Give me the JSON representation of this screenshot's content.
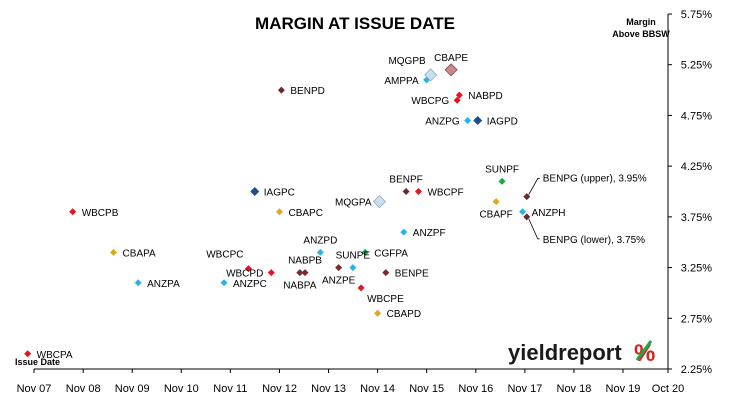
{
  "chart_data": {
    "type": "scatter",
    "title": "MARGIN AT ISSUE DATE",
    "ylabel_lines": [
      "Margin",
      "Above BBSW"
    ],
    "xlabel": "Issue Date",
    "logo": {
      "text": "yieldreport",
      "symbol": "%"
    },
    "xlim": [
      "2007-11-01",
      "2020-10-01"
    ],
    "ylim": [
      2.25,
      5.75
    ],
    "x_ticks": [
      {
        "label": "Nov 07",
        "date": "2007-11-01"
      },
      {
        "label": "Nov 08",
        "date": "2008-11-01"
      },
      {
        "label": "Nov 09",
        "date": "2009-11-01"
      },
      {
        "label": "Nov 10",
        "date": "2010-11-01"
      },
      {
        "label": "Nov 11",
        "date": "2011-11-01"
      },
      {
        "label": "Nov 12",
        "date": "2012-11-01"
      },
      {
        "label": "Nov 13",
        "date": "2013-11-01"
      },
      {
        "label": "Nov 14",
        "date": "2014-11-01"
      },
      {
        "label": "Nov 15",
        "date": "2015-11-01"
      },
      {
        "label": "Nov 16",
        "date": "2016-11-01"
      },
      {
        "label": "Nov 17",
        "date": "2017-11-01"
      },
      {
        "label": "Nov 18",
        "date": "2018-11-01"
      },
      {
        "label": "Nov 19",
        "date": "2019-11-01"
      },
      {
        "label": "Oct 20",
        "date": "2020-10-01"
      }
    ],
    "y_ticks": [
      {
        "label": "2.25%",
        "value": 2.25
      },
      {
        "label": "2.75%",
        "value": 2.75
      },
      {
        "label": "3.25%",
        "value": 3.25
      },
      {
        "label": "3.75%",
        "value": 3.75
      },
      {
        "label": "4.25%",
        "value": 4.25
      },
      {
        "label": "4.75%",
        "value": 4.75
      },
      {
        "label": "5.25%",
        "value": 5.25
      },
      {
        "label": "5.75%",
        "value": 5.75
      }
    ],
    "grid": false,
    "points": [
      {
        "label": "WBCPA",
        "date": "2007-09-15",
        "margin": 2.4,
        "color": "#e8141b",
        "label_pos": "right"
      },
      {
        "label": "WBCPB",
        "date": "2008-08-15",
        "margin": 3.8,
        "color": "#e8141b",
        "label_pos": "right"
      },
      {
        "label": "CBAPA",
        "date": "2009-06-15",
        "margin": 3.4,
        "color": "#e3a51b",
        "label_pos": "right"
      },
      {
        "label": "ANZPA",
        "date": "2009-12-15",
        "margin": 3.1,
        "color": "#28b4e6",
        "label_pos": "right"
      },
      {
        "label": "ANZPC",
        "date": "2011-09-15",
        "margin": 3.1,
        "color": "#28b4e6",
        "label_pos": "right"
      },
      {
        "label": "IAGPC",
        "date": "2012-05-01",
        "margin": 4.0,
        "color": "#1f4e8c",
        "label_pos": "right"
      },
      {
        "label": "WBCPC",
        "date": "2012-03-15",
        "margin": 3.24,
        "color": "#e8141b",
        "label_pos": "above-left"
      },
      {
        "label": "WBCPD",
        "date": "2012-09-01",
        "margin": 3.2,
        "color": "#e8141b",
        "label_pos": "left"
      },
      {
        "label": "CBAPC",
        "date": "2012-11-01",
        "margin": 3.8,
        "color": "#e3a51b",
        "label_pos": "right"
      },
      {
        "label": "BENPD",
        "date": "2012-11-15",
        "margin": 5.0,
        "color": "#6b2a2a",
        "label_pos": "right"
      },
      {
        "label": "NABPA",
        "date": "2013-04-01",
        "margin": 3.2,
        "color": "#7a2a2a",
        "label_pos": "below"
      },
      {
        "label": "NABPB",
        "date": "2013-05-10",
        "margin": 3.2,
        "color": "#7a2a2a",
        "label_pos": "above"
      },
      {
        "label": "ANZPD",
        "date": "2013-09-01",
        "margin": 3.4,
        "color": "#28b4e6",
        "label_pos": "above"
      },
      {
        "label": "ANZPE",
        "date": "2014-01-15",
        "margin": 3.25,
        "color": "#7a2a2a",
        "label_pos": "below"
      },
      {
        "label": "SUNPE",
        "date": "2014-05-01",
        "margin": 3.25,
        "color": "#28b4e6",
        "label_pos": "above"
      },
      {
        "label": "CGFPA",
        "date": "2014-08-01",
        "margin": 3.4,
        "color": "#1fa64a",
        "label_pos": "right"
      },
      {
        "label": "WBCPE",
        "date": "2014-07-01",
        "margin": 3.05,
        "color": "#e8141b",
        "label_pos": "below-right"
      },
      {
        "label": "MQGPA",
        "date": "2014-11-15",
        "margin": 3.9,
        "color": "#c9dff0",
        "label_pos": "left"
      },
      {
        "label": "CBAPD",
        "date": "2014-11-01",
        "margin": 2.8,
        "color": "#e3a51b",
        "label_pos": "right"
      },
      {
        "label": "BENPE",
        "date": "2015-01-01",
        "margin": 3.2,
        "color": "#7a2a2a",
        "label_pos": "right"
      },
      {
        "label": "ANZPF",
        "date": "2015-05-15",
        "margin": 3.6,
        "color": "#28b4e6",
        "label_pos": "right"
      },
      {
        "label": "BENPF",
        "date": "2015-06-01",
        "margin": 4.0,
        "color": "#6b2a2a",
        "label_pos": "above"
      },
      {
        "label": "WBCPF",
        "date": "2015-09-01",
        "margin": 4.0,
        "color": "#e8141b",
        "label_pos": "right"
      },
      {
        "label": "AMPPA",
        "date": "2015-11-01",
        "margin": 5.1,
        "color": "#28b4e6",
        "label_pos": "left"
      },
      {
        "label": "MQGPB",
        "date": "2015-12-01",
        "margin": 5.15,
        "color": "#c9dff0",
        "label_pos": "above-left"
      },
      {
        "label": "CBAPE",
        "date": "2016-05-01",
        "margin": 5.2,
        "color": "#c98a8a",
        "label_pos": "above"
      },
      {
        "label": "WBCPG",
        "date": "2016-06-15",
        "margin": 4.9,
        "color": "#e8141b",
        "label_pos": "left"
      },
      {
        "label": "NABPD",
        "date": "2016-07-01",
        "margin": 4.95,
        "color": "#e8141b",
        "label_pos": "right"
      },
      {
        "label": "ANZPG",
        "date": "2016-09-01",
        "margin": 4.7,
        "color": "#28b4e6",
        "label_pos": "left"
      },
      {
        "label": "IAGPD",
        "date": "2016-11-15",
        "margin": 4.7,
        "color": "#1f4e8c",
        "label_pos": "right"
      },
      {
        "label": "SUNPF",
        "date": "2017-05-15",
        "margin": 4.1,
        "color": "#1fa64a",
        "label_pos": "above"
      },
      {
        "label": "CBAPF",
        "date": "2017-04-01",
        "margin": 3.9,
        "color": "#e3a51b",
        "label_pos": "below"
      },
      {
        "label": "ANZPH",
        "date": "2017-10-15",
        "margin": 3.8,
        "color": "#28b4e6",
        "label_pos": "right"
      },
      {
        "label": "BENPG (upper), 3.95%",
        "date": "2017-11-15",
        "margin": 3.95,
        "color": "#6b2a2a",
        "label_pos": "upper-callout"
      },
      {
        "label": "BENPG (lower), 3.75%",
        "date": "2017-11-15",
        "margin": 3.75,
        "color": "#6b2a2a",
        "label_pos": "lower-callout"
      }
    ]
  }
}
